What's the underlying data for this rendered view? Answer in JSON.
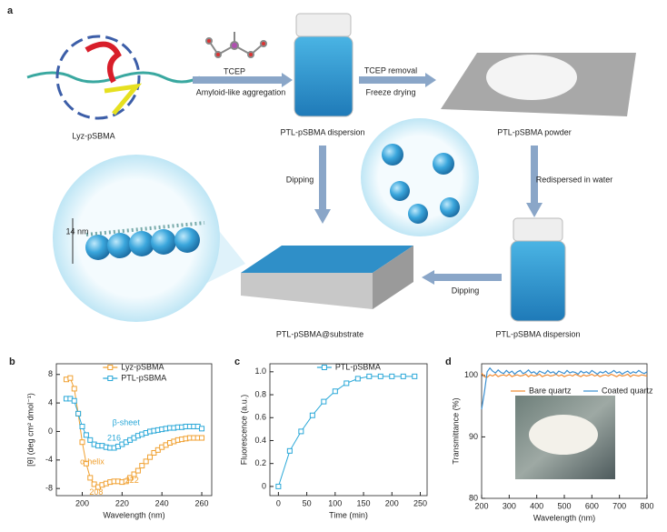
{
  "panel_a": {
    "label": "a",
    "protein": "Lyz-pSBMA",
    "reagent": "TCEP",
    "step_aggregation": "Amyloid-like aggregation",
    "dispersion_top": "PTL-pSBMA dispersion",
    "step_removal": "TCEP removal",
    "step_drying": "Freeze drying",
    "powder": "PTL-pSBMA powder",
    "step_dipping_left": "Dipping",
    "step_redisperse": "Redispersed in water",
    "thickness": "14 nm",
    "step_dipping_bottom": "Dipping",
    "substrate": "PTL-pSBMA@substrate",
    "dispersion_bottom": "PTL-pSBMA dispersion"
  },
  "chart_data": [
    {
      "type": "line",
      "panel_label": "b",
      "markers": "square",
      "legend": "upper right",
      "x_label": "Wavelength (nm)",
      "y_label": "[θ] (deg cm² dmol⁻¹)",
      "x": [
        192,
        194,
        196,
        198,
        200,
        202,
        204,
        206,
        208,
        210,
        212,
        214,
        216,
        218,
        220,
        222,
        224,
        226,
        228,
        230,
        232,
        234,
        236,
        238,
        240,
        242,
        244,
        246,
        248,
        250,
        252,
        254,
        256,
        258,
        260
      ],
      "series": [
        {
          "name": "Lyz-pSBMA",
          "color": "#f0a030",
          "values": [
            7.3,
            7.5,
            6.0,
            2.5,
            -1.5,
            -4.5,
            -6.5,
            -7.4,
            -7.8,
            -7.5,
            -7.3,
            -7.1,
            -7.0,
            -7.0,
            -7.1,
            -7.0,
            -6.5,
            -6.0,
            -5.5,
            -4.8,
            -4.2,
            -3.6,
            -3.0,
            -2.6,
            -2.2,
            -1.9,
            -1.6,
            -1.4,
            -1.2,
            -1.1,
            -1.0,
            -0.9,
            -0.9,
            -0.9,
            -0.9
          ]
        },
        {
          "name": "PTL-pSBMA",
          "color": "#2aa8d8",
          "values": [
            4.6,
            4.6,
            4.3,
            2.5,
            0.7,
            -0.5,
            -1.2,
            -1.8,
            -2.0,
            -2.0,
            -2.2,
            -2.3,
            -2.3,
            -2.1,
            -1.8,
            -1.5,
            -1.2,
            -0.9,
            -0.6,
            -0.4,
            -0.2,
            0.0,
            0.1,
            0.2,
            0.3,
            0.4,
            0.5,
            0.5,
            0.6,
            0.6,
            0.7,
            0.7,
            0.7,
            0.7,
            0.4
          ]
        }
      ],
      "annotations": [
        "α-helix",
        "208",
        "222",
        "β-sheet",
        "216"
      ],
      "xlim": [
        187,
        265
      ],
      "xticks": [
        200,
        220,
        240,
        260
      ],
      "ylim": [
        -9,
        9.5
      ],
      "yticks": [
        -8,
        -4,
        0,
        4,
        8
      ],
      "grid": false
    },
    {
      "type": "line",
      "panel_label": "c",
      "markers": "square",
      "legend": "upper right",
      "x_label": "Time (min)",
      "y_label": "Fluorescence (a.u.)",
      "x": [
        0,
        20,
        40,
        60,
        80,
        100,
        120,
        140,
        160,
        180,
        200,
        220,
        240
      ],
      "series": [
        {
          "name": "PTL-pSBMA",
          "color": "#2aa8d8",
          "values": [
            0,
            0.31,
            0.48,
            0.62,
            0.74,
            0.83,
            0.9,
            0.94,
            0.96,
            0.96,
            0.96,
            0.96,
            0.96
          ]
        }
      ],
      "xlim": [
        -15,
        262
      ],
      "xticks": [
        0,
        50,
        100,
        150,
        200,
        250
      ],
      "ylim": [
        -0.08,
        1.07
      ],
      "yticks": [
        0,
        0.2,
        0.4,
        0.6,
        0.8,
        {
          "value": 1,
          "label": "1.0"
        }
      ],
      "grid": false
    },
    {
      "type": "line",
      "panel_label": "d",
      "markers": "none",
      "legend": "upper right",
      "x_label": "Wavelength (nm)",
      "y_label": "Transmittance (%)",
      "x": [
        200,
        210,
        220,
        230,
        240,
        250,
        260,
        270,
        280,
        290,
        300,
        310,
        320,
        330,
        340,
        350,
        360,
        370,
        380,
        390,
        400,
        410,
        420,
        430,
        440,
        450,
        460,
        470,
        480,
        490,
        500,
        510,
        520,
        530,
        540,
        550,
        560,
        570,
        580,
        590,
        600,
        610,
        620,
        630,
        640,
        650,
        660,
        670,
        680,
        690,
        700,
        710,
        720,
        730,
        740,
        750,
        760,
        770,
        780,
        790,
        800
      ],
      "series": [
        {
          "name": "Bare quartz",
          "color": "#f08a30",
          "values": [
            100.4,
            99.8,
            99.7,
            100.1,
            99.9,
            100.2,
            99.8,
            100.0,
            100.1,
            99.9,
            100.2,
            99.8,
            100.0,
            100.1,
            99.9,
            100.0,
            100.2,
            99.8,
            100.1,
            99.9,
            100.0,
            100.2,
            99.8,
            100.0,
            100.1,
            99.9,
            100.0,
            100.2,
            99.9,
            100.1,
            99.8,
            100.0,
            100.1,
            99.9,
            100.2,
            100.0,
            99.8,
            100.1,
            99.9,
            100.0,
            100.2,
            99.9,
            100.1,
            99.8,
            100.0,
            100.1,
            99.9,
            100.2,
            100.0,
            99.8,
            100.1,
            99.9,
            100.0,
            100.2,
            99.8,
            100.1,
            100.0,
            99.9,
            100.1,
            100.0,
            99.9
          ]
        },
        {
          "name": "Coated quartz",
          "color": "#3a8fd0",
          "values": [
            94.5,
            97.2,
            100.6,
            101.2,
            100.7,
            100.4,
            100.9,
            100.5,
            100.3,
            100.8,
            100.4,
            100.7,
            100.2,
            100.6,
            100.8,
            100.3,
            100.5,
            100.9,
            100.4,
            100.6,
            100.2,
            100.7,
            100.5,
            100.3,
            100.8,
            100.4,
            100.6,
            100.2,
            100.7,
            100.5,
            100.3,
            100.8,
            100.4,
            100.6,
            100.5,
            100.2,
            100.7,
            100.4,
            100.6,
            100.3,
            100.8,
            100.5,
            100.2,
            100.6,
            100.4,
            100.7,
            100.3,
            100.5,
            100.8,
            100.4,
            100.6,
            100.2,
            100.5,
            100.7,
            100.3,
            100.6,
            100.4,
            100.8,
            100.5,
            100.3,
            100.6
          ]
        }
      ],
      "xlim": [
        200,
        800
      ],
      "xticks": [
        200,
        300,
        400,
        500,
        600,
        700,
        800
      ],
      "ylim": [
        80,
        101.9
      ],
      "yticks": [
        80,
        90,
        100
      ],
      "grid": false
    }
  ]
}
